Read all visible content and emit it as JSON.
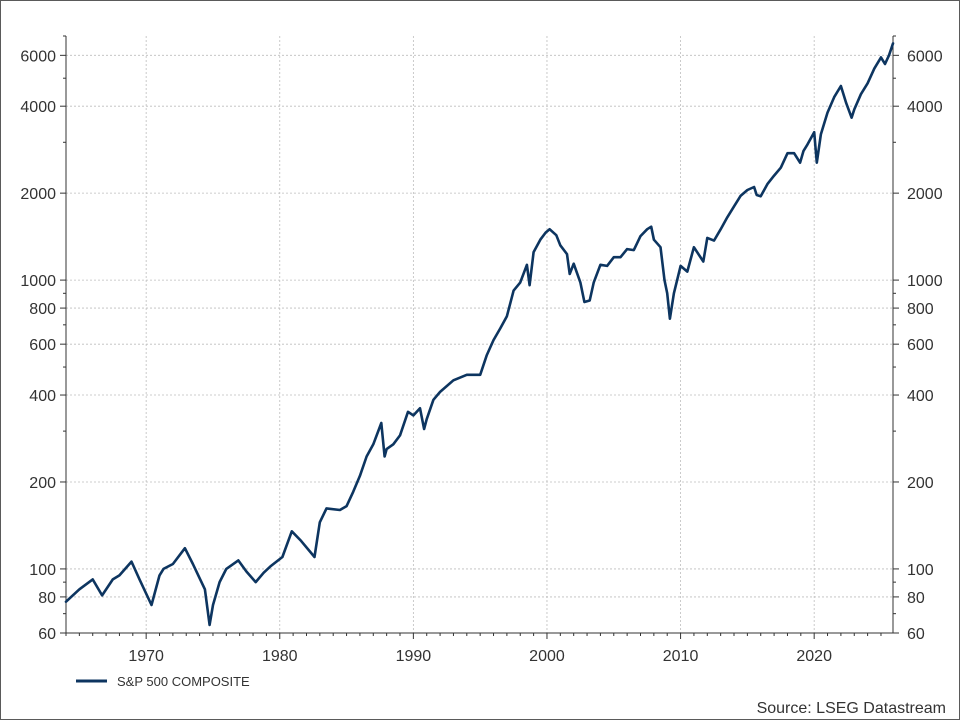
{
  "chart_data": {
    "type": "line",
    "title": "",
    "xlabel": "",
    "ylabel": "",
    "y_scale": "log",
    "xlim": [
      1964.0,
      2025.9
    ],
    "ylim": [
      60,
      7000
    ],
    "grid": true,
    "legend_position": "bottom-left",
    "x_ticks": [
      1970,
      1980,
      1990,
      2000,
      2010,
      2020
    ],
    "y_ticks": [
      60,
      80,
      100,
      200,
      400,
      600,
      800,
      1000,
      2000,
      4000,
      6000
    ],
    "y_tick_labels": [
      "60",
      "80",
      "100",
      "200",
      "400",
      "600",
      "800",
      "1000",
      "2000",
      "4000",
      "6000"
    ],
    "x_tick_labels": [
      "1970",
      "1980",
      "1990",
      "2000",
      "2010",
      "2020"
    ],
    "source": "Source: LSEG Datastream",
    "colors": {
      "series": "#0d3560",
      "grid": "#bdbdbd",
      "axis": "#333333"
    },
    "series": [
      {
        "name": "S&P 500 COMPOSITE",
        "x": [
          1964.0,
          1965.0,
          1966.0,
          1966.7,
          1967.5,
          1968.0,
          1968.9,
          1969.5,
          1970.4,
          1971.0,
          1971.3,
          1972.0,
          1972.9,
          1973.5,
          1973.9,
          1974.4,
          1974.75,
          1975.0,
          1975.5,
          1976.0,
          1976.9,
          1977.5,
          1978.2,
          1978.8,
          1979.3,
          1980.2,
          1980.9,
          1981.6,
          1982.6,
          1983.0,
          1983.5,
          1984.5,
          1985.0,
          1985.5,
          1986.0,
          1986.5,
          1987.0,
          1987.6,
          1987.85,
          1988.0,
          1988.5,
          1989.0,
          1989.6,
          1990.0,
          1990.5,
          1990.8,
          1991.0,
          1991.5,
          1992.0,
          1993.0,
          1994.0,
          1995.0,
          1995.5,
          1996.0,
          1996.5,
          1997.0,
          1997.5,
          1998.0,
          1998.5,
          1998.7,
          1999.0,
          1999.5,
          1999.9,
          2000.2,
          2000.7,
          2001.0,
          2001.5,
          2001.7,
          2002.0,
          2002.5,
          2002.8,
          2003.2,
          2003.5,
          2004.0,
          2004.5,
          2005.0,
          2005.5,
          2006.0,
          2006.5,
          2007.0,
          2007.5,
          2007.8,
          2008.0,
          2008.5,
          2008.8,
          2009.0,
          2009.2,
          2009.5,
          2010.0,
          2010.5,
          2011.0,
          2011.7,
          2012.0,
          2012.5,
          2013.0,
          2013.5,
          2014.0,
          2014.5,
          2015.0,
          2015.5,
          2015.7,
          2016.0,
          2016.5,
          2017.0,
          2017.5,
          2018.0,
          2018.5,
          2018.95,
          2019.2,
          2019.5,
          2020.0,
          2020.2,
          2020.5,
          2021.0,
          2021.5,
          2022.0,
          2022.4,
          2022.8,
          2023.0,
          2023.5,
          2024.0,
          2024.5,
          2025.0,
          2025.3,
          2025.6,
          2025.9
        ],
        "values": [
          77,
          85,
          92,
          81,
          92,
          95,
          106,
          92,
          75,
          95,
          100,
          104,
          118,
          104,
          95,
          85,
          64,
          75,
          90,
          100,
          107,
          98,
          90,
          97,
          102,
          110,
          135,
          125,
          110,
          145,
          162,
          160,
          165,
          185,
          210,
          245,
          270,
          320,
          245,
          260,
          270,
          290,
          350,
          340,
          360,
          305,
          330,
          385,
          410,
          450,
          470,
          470,
          550,
          620,
          680,
          750,
          920,
          980,
          1130,
          960,
          1250,
          1380,
          1460,
          1500,
          1430,
          1320,
          1230,
          1050,
          1140,
          980,
          840,
          850,
          980,
          1130,
          1120,
          1200,
          1200,
          1280,
          1270,
          1420,
          1500,
          1530,
          1380,
          1300,
          1000,
          900,
          735,
          900,
          1120,
          1070,
          1300,
          1160,
          1400,
          1370,
          1500,
          1650,
          1800,
          1960,
          2050,
          2100,
          1970,
          1950,
          2150,
          2300,
          2450,
          2750,
          2750,
          2550,
          2800,
          2950,
          3250,
          2550,
          3200,
          3800,
          4300,
          4700,
          4100,
          3650,
          3900,
          4400,
          4800,
          5400,
          5900,
          5600,
          6000,
          6600
        ]
      }
    ]
  },
  "legend": {
    "label": "S&P 500 COMPOSITE"
  }
}
